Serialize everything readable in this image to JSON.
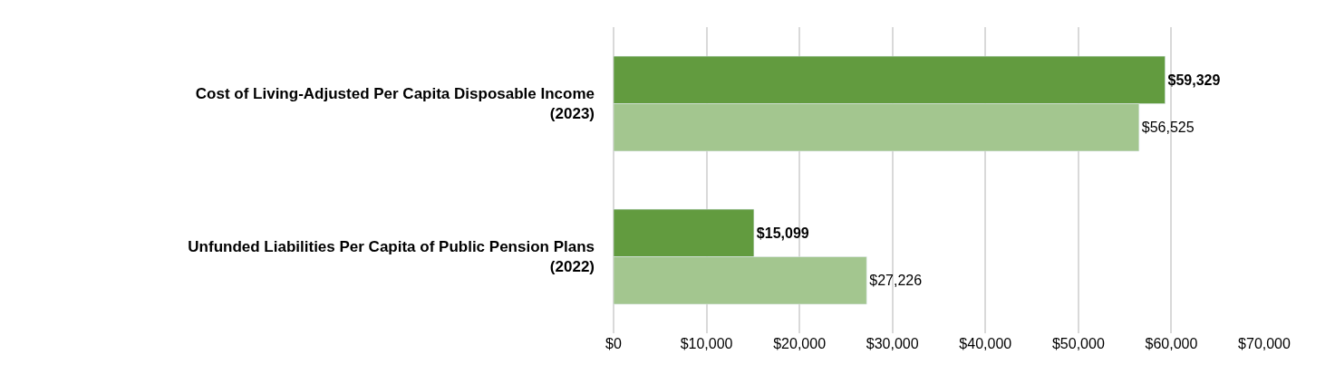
{
  "chart_data": {
    "type": "bar",
    "orientation": "horizontal",
    "categories": [
      "Cost of Living-Adjusted Per Capita Disposable Income\n(2023)",
      "Unfunded Liabilities Per Capita of Public Pension Plans\n(2022)"
    ],
    "series": [
      {
        "color": "#629b3f",
        "values": [
          59329,
          15099
        ],
        "value_labels": [
          "$59,329",
          "$15,099"
        ]
      },
      {
        "color": "#a3c68f",
        "values": [
          56525,
          27226
        ],
        "value_labels": [
          "$56,525",
          "$27,226"
        ]
      }
    ],
    "xlim": [
      0,
      70000
    ],
    "xticks": [
      {
        "value": 0,
        "label": "$0"
      },
      {
        "value": 10000,
        "label": "$10,000"
      },
      {
        "value": 20000,
        "label": "$20,000"
      },
      {
        "value": 30000,
        "label": "$30,000"
      },
      {
        "value": 40000,
        "label": "$40,000"
      },
      {
        "value": 50000,
        "label": "$50,000"
      },
      {
        "value": 60000,
        "label": "$60,000"
      },
      {
        "value": 70000,
        "label": "$70,000"
      }
    ],
    "grid": "x"
  }
}
